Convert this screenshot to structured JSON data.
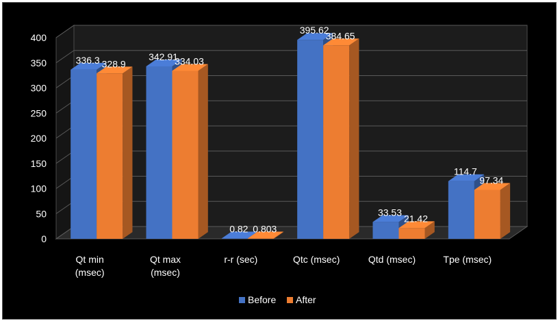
{
  "chart_data": {
    "type": "bar",
    "categories": [
      "Qt min\n(msec)",
      "Qt max\n(msec)",
      "r-r (sec)",
      "Qtc (msec)",
      "Qtd (msec)",
      "Tpe (msec)"
    ],
    "series": [
      {
        "name": "Before",
        "values": [
          336.3,
          342.91,
          0.82,
          395.62,
          33.53,
          114.7
        ],
        "labels": [
          "336.3",
          "342.91",
          "0.82",
          "395.62",
          "33.53",
          "114.7"
        ],
        "color": "#4472c4"
      },
      {
        "name": "After",
        "values": [
          328.9,
          334.03,
          0.803,
          384.65,
          21.42,
          97.34
        ],
        "labels": [
          "328.9",
          "334.03",
          "0.803",
          "384.65",
          "21.42",
          "97.34"
        ],
        "color": "#ed7d31"
      }
    ],
    "ylim": [
      0,
      400
    ],
    "yticks": [
      0,
      50,
      100,
      150,
      200,
      250,
      300,
      350,
      400
    ],
    "grid": true,
    "legend_position": "bottom",
    "background": "#000000",
    "style": "3d-clustered-column"
  }
}
